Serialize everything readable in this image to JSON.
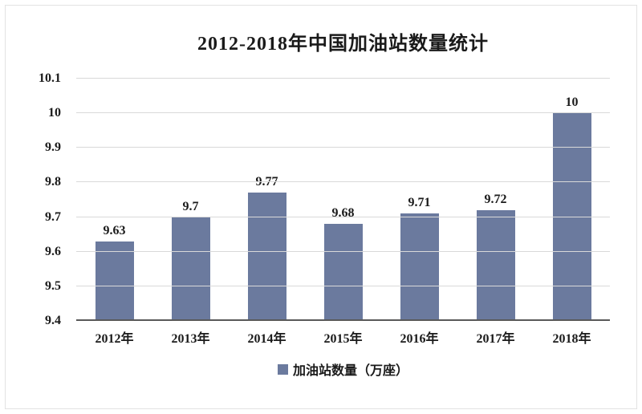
{
  "chart_data": {
    "type": "bar",
    "title": "2012-2018年中国加油站数量统计",
    "categories": [
      "2012年",
      "2013年",
      "2014年",
      "2015年",
      "2016年",
      "2017年",
      "2018年"
    ],
    "values": [
      9.63,
      9.7,
      9.77,
      9.68,
      9.71,
      9.72,
      10
    ],
    "value_labels": [
      "9.63",
      "9.7",
      "9.77",
      "9.68",
      "9.71",
      "9.72",
      "10"
    ],
    "ylim": [
      9.4,
      10.1
    ],
    "yticks": [
      9.4,
      9.5,
      9.6,
      9.7,
      9.8,
      9.9,
      10,
      10.1
    ],
    "ytick_labels": [
      "9.4",
      "9.5",
      "9.6",
      "9.7",
      "9.8",
      "9.9",
      "10",
      "10.1"
    ],
    "grid": true,
    "legend": "加油站数量（万座）",
    "legend_position": "bottom",
    "bar_color": "#6b7a9e",
    "gridline_color": "#d9d9d9",
    "axis_line_color": "#595959",
    "text_color": "#1a1a1a"
  }
}
